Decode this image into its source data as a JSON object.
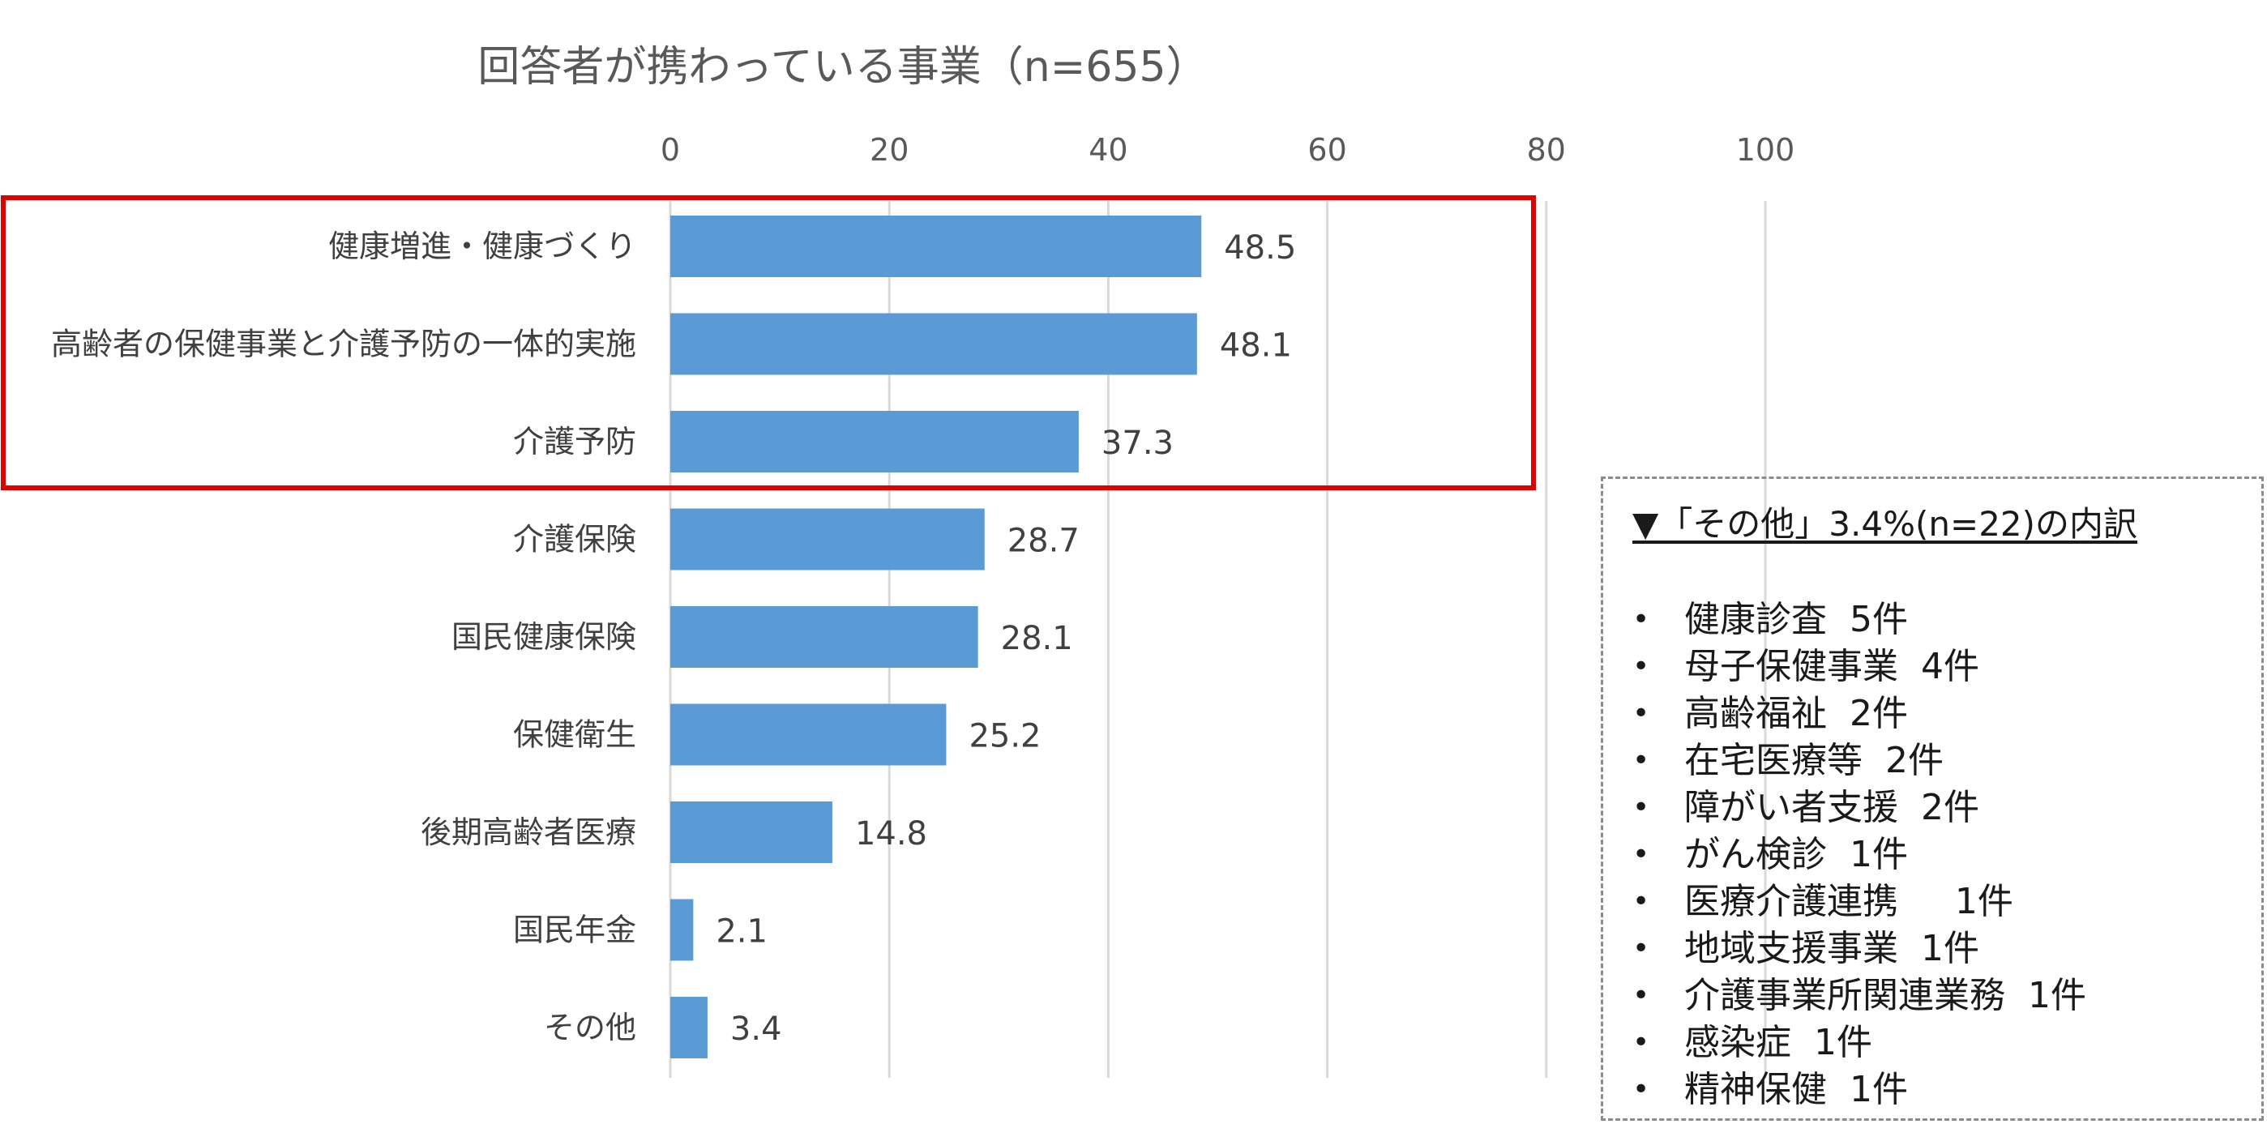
{
  "chart_data": {
    "type": "bar",
    "orientation": "horizontal",
    "title": "回答者が携わっている事業（n=655）",
    "categories": [
      "健康増進・健康づくり",
      "高齢者の保健事業と介護予防の一体的実施",
      "介護予防",
      "介護保険",
      "国民健康保険",
      "保健衛生",
      "後期高齢者医療",
      "国民年金",
      "その他"
    ],
    "values": [
      48.5,
      48.1,
      37.3,
      28.7,
      28.1,
      25.2,
      14.8,
      2.1,
      3.4
    ],
    "value_labels": [
      "48.5",
      "48.1",
      "37.3",
      "28.7",
      "28.1",
      "25.2",
      "14.8",
      "2.1",
      "3.4"
    ],
    "xlim": [
      0,
      100
    ],
    "x_ticks": [
      "0",
      "20",
      "40",
      "60",
      "80",
      "100"
    ],
    "grid": true,
    "bar_color": "#5b9bd5",
    "highlight_color": "#e00000",
    "highlighted_categories": [
      0,
      1,
      2
    ]
  },
  "note": {
    "title": "▼「その他」3.4%(n=22)の内訳",
    "bullet": "•",
    "items": [
      "健康診査  5件",
      "母子保健事業  4件",
      "高齢福祉  2件",
      "在宅医療等  2件",
      "障がい者支援  2件",
      "がん検診  1件",
      "医療介護連携     1件",
      "地域支援事業  1件",
      "介護事業所関連業務  1件",
      "感染症  1件",
      "精神保健  1件"
    ]
  }
}
